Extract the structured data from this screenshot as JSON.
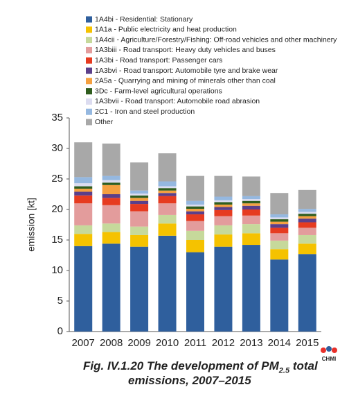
{
  "chart_data": {
    "type": "stacked_bar",
    "title": [
      "Fig. IV.1.20  The development of PM",
      "2.5",
      "total",
      "emissions, 2007–2015"
    ],
    "logo": "CHMI",
    "y_label": "emission [kt]",
    "categories": [
      "2007",
      "2008",
      "2009",
      "2010",
      "2011",
      "2012",
      "2013",
      "2014",
      "2015"
    ],
    "ylim": [
      0,
      35
    ],
    "yticks": [
      0,
      5,
      10,
      15,
      20,
      25,
      30,
      35
    ],
    "series": [
      {
        "name": "1A4bi - Residential: Stationary",
        "color": "#2f5f9d",
        "values": [
          14.0,
          14.4,
          13.9,
          15.7,
          13.0,
          13.9,
          14.2,
          11.8,
          12.7
        ]
      },
      {
        "name": "1A1a - Public electricity and heat production",
        "color": "#f5c200",
        "values": [
          2.0,
          1.9,
          1.9,
          2.0,
          2.0,
          2.0,
          1.9,
          1.7,
          1.7
        ]
      },
      {
        "name": "1A4cii - Agriculture/Forestry/Fishing: Off-road vehicles and other machinery",
        "color": "#c6d99b",
        "values": [
          1.4,
          1.4,
          1.4,
          1.4,
          1.5,
          1.5,
          1.5,
          1.4,
          1.4
        ]
      },
      {
        "name": "1A3biii - Road transport: Heavy duty vehicles and buses",
        "color": "#e39c9c",
        "values": [
          3.6,
          3.0,
          2.5,
          1.9,
          1.6,
          1.5,
          1.4,
          1.2,
          1.2
        ]
      },
      {
        "name": "1A3bi - Road transport: Passenger cars",
        "color": "#e63b20",
        "values": [
          1.3,
          1.2,
          1.2,
          1.2,
          1.1,
          1.0,
          1.0,
          0.9,
          0.9
        ]
      },
      {
        "name": "1A3bvi - Road transport: Automobile tyre and brake wear",
        "color": "#5b3f8a",
        "values": [
          0.6,
          0.6,
          0.5,
          0.5,
          0.5,
          0.5,
          0.6,
          0.6,
          0.6
        ]
      },
      {
        "name": "2A5a - Quarrying and mining of minerals other than coal",
        "color": "#f5a040",
        "values": [
          0.5,
          1.5,
          0.5,
          0.4,
          0.4,
          0.4,
          0.4,
          0.4,
          0.4
        ]
      },
      {
        "name": "3Dc - Farm-level agricultural operations",
        "color": "#2f5d1e",
        "values": [
          0.4,
          0.4,
          0.4,
          0.4,
          0.4,
          0.4,
          0.4,
          0.4,
          0.4
        ]
      },
      {
        "name": "1A3bvii - Road transport: Automobile road abrasion",
        "color": "#dcdcf0",
        "values": [
          0.5,
          0.4,
          0.3,
          0.3,
          0.3,
          0.3,
          0.3,
          0.3,
          0.3
        ]
      },
      {
        "name": "2C1 - Iron and steel production",
        "color": "#95b8e0",
        "values": [
          1.0,
          0.7,
          0.5,
          0.8,
          0.6,
          0.6,
          0.5,
          0.5,
          0.5
        ]
      },
      {
        "name": "Other",
        "color": "#a8a8a8",
        "values": [
          5.7,
          5.3,
          4.6,
          4.6,
          4.1,
          3.4,
          3.2,
          3.5,
          3.1
        ]
      }
    ]
  }
}
